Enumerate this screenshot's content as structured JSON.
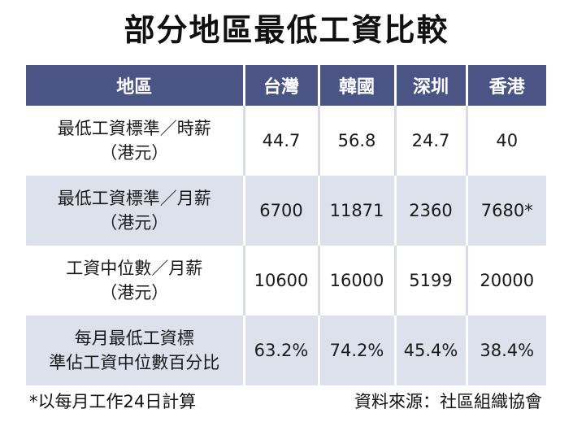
{
  "title": "部分地區最低工資比較",
  "table": {
    "headers": [
      "地區",
      "台灣",
      "韓國",
      "深圳",
      "香港"
    ],
    "rows": [
      {
        "label": [
          "最低工資標準／時薪",
          "（港元）"
        ],
        "values": [
          "44.7",
          "56.8",
          "24.7",
          "40"
        ]
      },
      {
        "label": [
          "最低工資標準／月薪",
          "（港元）"
        ],
        "values": [
          "6700",
          "11871",
          "2360",
          "7680*"
        ]
      },
      {
        "label": [
          "工資中位數／月薪",
          "（港元）"
        ],
        "values": [
          "10600",
          "16000",
          "5199",
          "20000"
        ]
      },
      {
        "label": [
          "每月最低工資標",
          "準佔工資中位數百分比"
        ],
        "values": [
          "63.2%",
          "74.2%",
          "45.4%",
          "38.4%"
        ]
      }
    ]
  },
  "footnote": "*以每月工作24日計算",
  "source": "資料來源：社區組織協會",
  "colors": {
    "header_bg": "#4a5585",
    "stripe_bg": "#dde1ec"
  }
}
